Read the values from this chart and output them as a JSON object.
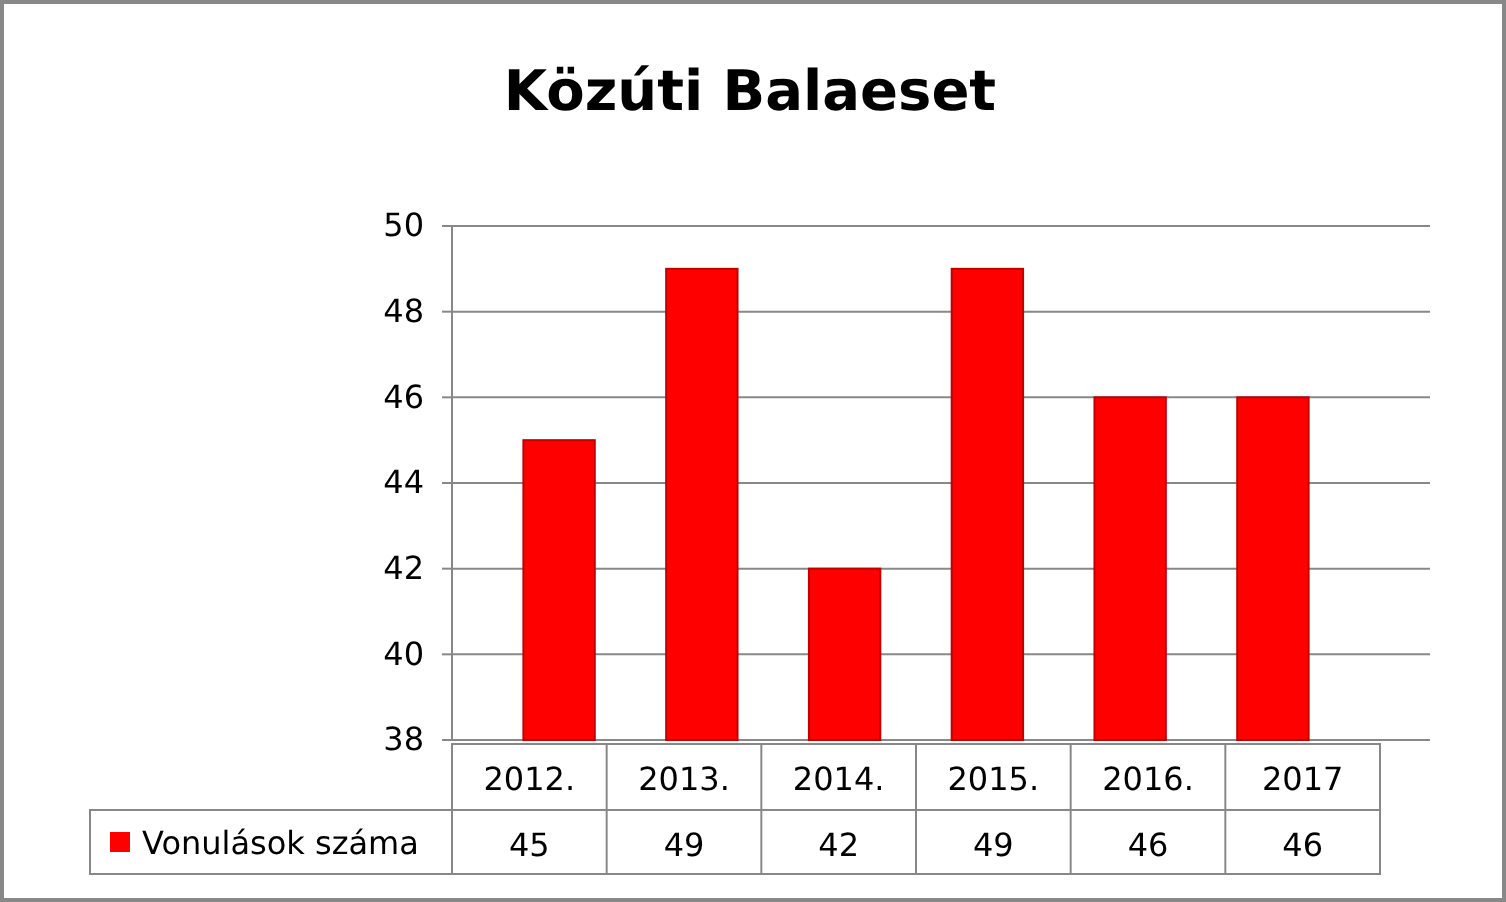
{
  "chart_data": {
    "type": "bar",
    "title": "Közúti Balaeset",
    "categories": [
      "2012.",
      "2013.",
      "2014.",
      "2015.",
      "2016.",
      "2017"
    ],
    "series": [
      {
        "name": "Vonulások száma",
        "color": "#ff0000",
        "values": [
          45,
          49,
          42,
          49,
          46,
          46
        ]
      }
    ],
    "ylim": [
      38,
      50
    ],
    "yticks": [
      38,
      40,
      42,
      44,
      46,
      48,
      50
    ],
    "grid": "y",
    "data_labels": true,
    "legend": "bottom"
  }
}
